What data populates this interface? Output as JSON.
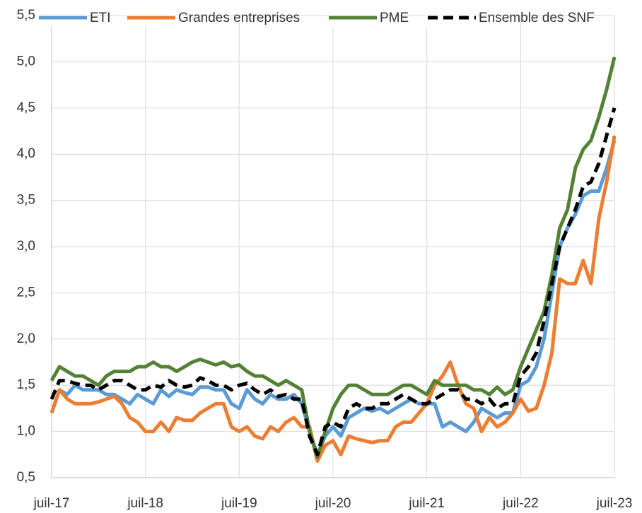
{
  "chart_data": {
    "type": "line",
    "categories": [
      "juil-17",
      null,
      null,
      null,
      null,
      null,
      null,
      null,
      null,
      null,
      null,
      null,
      "juil-18",
      null,
      null,
      null,
      null,
      null,
      null,
      null,
      null,
      null,
      null,
      null,
      "juil-19",
      null,
      null,
      null,
      null,
      null,
      null,
      null,
      null,
      null,
      null,
      null,
      "juil-20",
      null,
      null,
      null,
      null,
      null,
      null,
      null,
      null,
      null,
      null,
      null,
      "juil-21",
      null,
      null,
      null,
      null,
      null,
      null,
      null,
      null,
      null,
      null,
      null,
      "juil-22",
      null,
      null,
      null,
      null,
      null,
      null,
      null,
      null,
      null,
      null,
      null,
      "juil-23"
    ],
    "series": [
      {
        "name": "ETI",
        "color": "#5b9bd5",
        "dash": false,
        "values": [
          1.2,
          1.45,
          1.4,
          1.5,
          1.45,
          1.45,
          1.45,
          1.4,
          1.4,
          1.35,
          1.3,
          1.4,
          1.35,
          1.3,
          1.45,
          1.38,
          1.45,
          1.42,
          1.4,
          1.48,
          1.48,
          1.45,
          1.45,
          1.3,
          1.25,
          1.45,
          1.35,
          1.3,
          1.4,
          1.35,
          1.35,
          1.4,
          1.3,
          1.0,
          0.75,
          0.95,
          1.05,
          0.95,
          1.15,
          1.2,
          1.25,
          1.22,
          1.25,
          1.2,
          1.25,
          1.3,
          1.35,
          1.3,
          1.3,
          1.3,
          1.05,
          1.1,
          1.05,
          1.0,
          1.1,
          1.25,
          1.2,
          1.15,
          1.2,
          1.2,
          1.5,
          1.55,
          1.7,
          2.0,
          2.5,
          3.0,
          3.2,
          3.35,
          3.55,
          3.6,
          3.6,
          3.85,
          4.15
        ]
      },
      {
        "name": "Grandes entreprises",
        "color": "#ed7d31",
        "dash": false,
        "values": [
          1.2,
          1.45,
          1.35,
          1.3,
          1.3,
          1.3,
          1.32,
          1.35,
          1.38,
          1.3,
          1.15,
          1.1,
          1.0,
          1.0,
          1.1,
          1.0,
          1.15,
          1.12,
          1.12,
          1.2,
          1.25,
          1.3,
          1.3,
          1.05,
          1.0,
          1.05,
          0.95,
          0.92,
          1.05,
          1.0,
          1.1,
          1.15,
          1.05,
          1.05,
          0.68,
          0.85,
          0.9,
          0.75,
          0.95,
          0.92,
          0.9,
          0.88,
          0.9,
          0.9,
          1.05,
          1.1,
          1.1,
          1.2,
          1.3,
          1.5,
          1.6,
          1.75,
          1.5,
          1.3,
          1.25,
          1.0,
          1.15,
          1.05,
          1.1,
          1.2,
          1.35,
          1.22,
          1.25,
          1.5,
          1.85,
          2.65,
          2.6,
          2.6,
          2.85,
          2.6,
          3.3,
          3.7,
          4.2
        ]
      },
      {
        "name": "PME",
        "color": "#548235",
        "dash": false,
        "values": [
          1.55,
          1.7,
          1.65,
          1.6,
          1.6,
          1.55,
          1.5,
          1.6,
          1.65,
          1.65,
          1.65,
          1.7,
          1.7,
          1.75,
          1.7,
          1.7,
          1.65,
          1.7,
          1.75,
          1.78,
          1.75,
          1.72,
          1.75,
          1.7,
          1.72,
          1.65,
          1.6,
          1.6,
          1.55,
          1.5,
          1.55,
          1.5,
          1.45,
          1.0,
          0.72,
          1.0,
          1.25,
          1.4,
          1.5,
          1.5,
          1.45,
          1.4,
          1.4,
          1.4,
          1.45,
          1.5,
          1.5,
          1.45,
          1.4,
          1.55,
          1.5,
          1.5,
          1.5,
          1.5,
          1.45,
          1.45,
          1.4,
          1.48,
          1.4,
          1.45,
          1.7,
          1.9,
          2.1,
          2.3,
          2.7,
          3.2,
          3.4,
          3.85,
          4.05,
          4.15,
          4.4,
          4.7,
          5.05
        ]
      },
      {
        "name": "Ensemble des SNF",
        "color": "#000000",
        "dash": true,
        "values": [
          1.35,
          1.55,
          1.55,
          1.52,
          1.5,
          1.5,
          1.45,
          1.5,
          1.55,
          1.55,
          1.5,
          1.45,
          1.45,
          1.5,
          1.48,
          1.55,
          1.5,
          1.48,
          1.5,
          1.58,
          1.55,
          1.5,
          1.5,
          1.45,
          1.5,
          1.52,
          1.45,
          1.4,
          1.45,
          1.38,
          1.4,
          1.35,
          1.35,
          0.95,
          0.75,
          1.05,
          1.1,
          1.05,
          1.25,
          1.3,
          1.25,
          1.25,
          1.3,
          1.3,
          1.35,
          1.4,
          1.35,
          1.3,
          1.3,
          1.35,
          1.4,
          1.45,
          1.45,
          1.35,
          1.35,
          1.3,
          1.35,
          1.25,
          1.3,
          1.3,
          1.6,
          1.7,
          1.85,
          2.2,
          2.6,
          3.0,
          3.2,
          3.4,
          3.65,
          3.7,
          3.9,
          4.2,
          4.5
        ]
      }
    ],
    "ylim": [
      0.5,
      5.5
    ],
    "yticks": [
      {
        "value": 0.5,
        "label": "0,5"
      },
      {
        "value": 1.0,
        "label": "1,0"
      },
      {
        "value": 1.5,
        "label": "1,5"
      },
      {
        "value": 2.0,
        "label": "2,0"
      },
      {
        "value": 2.5,
        "label": "2,5"
      },
      {
        "value": 3.0,
        "label": "3,0"
      },
      {
        "value": 3.5,
        "label": "3,5"
      },
      {
        "value": 4.0,
        "label": "4,0"
      },
      {
        "value": 4.5,
        "label": "4,5"
      },
      {
        "value": 5.0,
        "label": "5,0"
      },
      {
        "value": 5.5,
        "label": "5,5"
      }
    ],
    "grid": true,
    "legend": "top"
  }
}
